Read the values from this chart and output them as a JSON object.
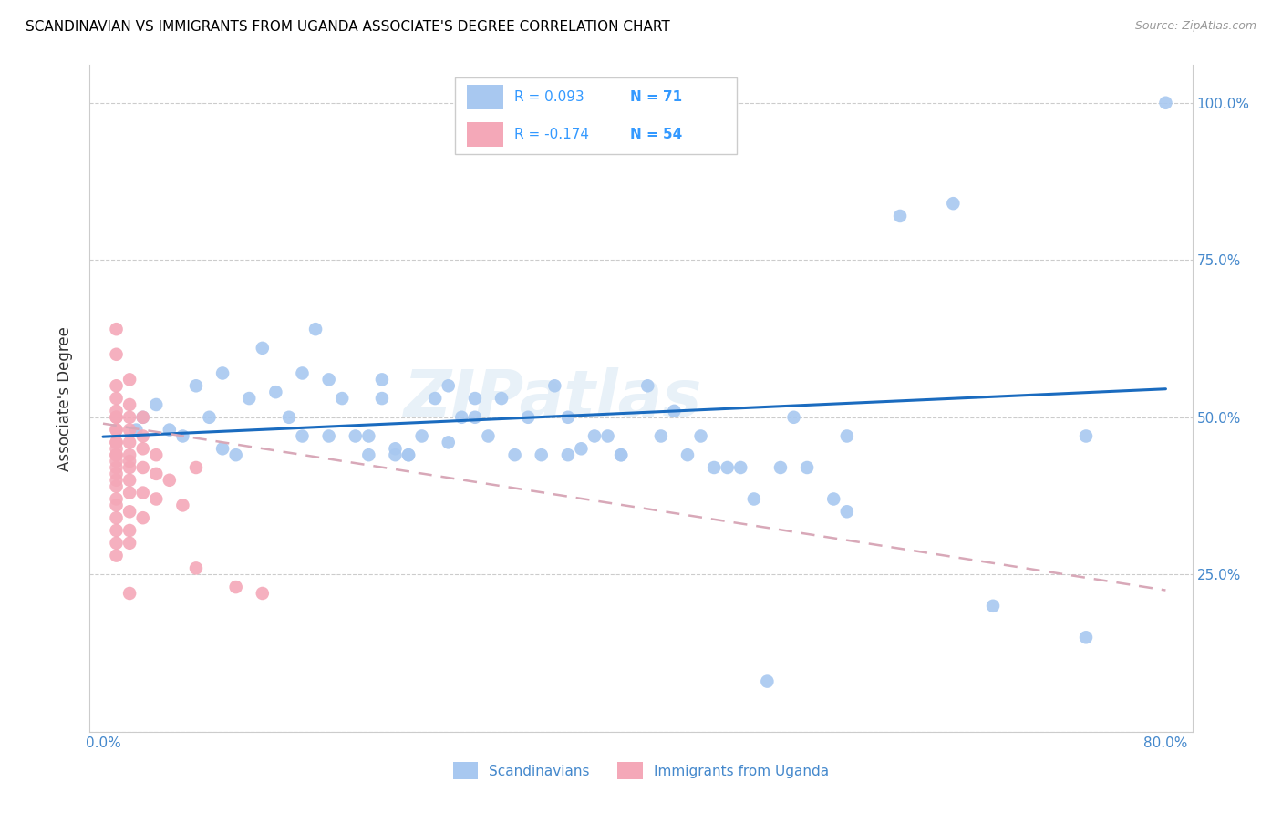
{
  "title": "SCANDINAVIAN VS IMMIGRANTS FROM UGANDA ASSOCIATE'S DEGREE CORRELATION CHART",
  "source": "Source: ZipAtlas.com",
  "ylabel": "Associate's Degree",
  "watermark": "ZIPatlas",
  "blue_color": "#a8c8f0",
  "pink_color": "#f4a8b8",
  "blue_line_color": "#1a6bbf",
  "pink_line_color": "#c87890",
  "pink_line_dash_color": "#d8a8b8",
  "title_fontsize": 11,
  "axis_tick_color": "#4488cc",
  "legend_text_color": "#3399ff",
  "blue_scatter": [
    [
      0.025,
      0.48
    ],
    [
      0.03,
      0.5
    ],
    [
      0.04,
      0.52
    ],
    [
      0.05,
      0.48
    ],
    [
      0.06,
      0.47
    ],
    [
      0.07,
      0.55
    ],
    [
      0.08,
      0.5
    ],
    [
      0.09,
      0.57
    ],
    [
      0.09,
      0.45
    ],
    [
      0.1,
      0.44
    ],
    [
      0.11,
      0.53
    ],
    [
      0.12,
      0.61
    ],
    [
      0.13,
      0.54
    ],
    [
      0.14,
      0.5
    ],
    [
      0.15,
      0.57
    ],
    [
      0.15,
      0.47
    ],
    [
      0.16,
      0.64
    ],
    [
      0.17,
      0.47
    ],
    [
      0.17,
      0.56
    ],
    [
      0.18,
      0.53
    ],
    [
      0.19,
      0.47
    ],
    [
      0.2,
      0.47
    ],
    [
      0.2,
      0.44
    ],
    [
      0.21,
      0.56
    ],
    [
      0.21,
      0.53
    ],
    [
      0.22,
      0.45
    ],
    [
      0.22,
      0.44
    ],
    [
      0.23,
      0.44
    ],
    [
      0.23,
      0.44
    ],
    [
      0.24,
      0.47
    ],
    [
      0.25,
      0.53
    ],
    [
      0.26,
      0.55
    ],
    [
      0.26,
      0.46
    ],
    [
      0.27,
      0.5
    ],
    [
      0.28,
      0.5
    ],
    [
      0.28,
      0.53
    ],
    [
      0.29,
      0.47
    ],
    [
      0.3,
      0.53
    ],
    [
      0.31,
      0.44
    ],
    [
      0.32,
      0.5
    ],
    [
      0.33,
      0.44
    ],
    [
      0.34,
      0.55
    ],
    [
      0.35,
      0.44
    ],
    [
      0.35,
      0.5
    ],
    [
      0.36,
      0.45
    ],
    [
      0.37,
      0.47
    ],
    [
      0.38,
      0.47
    ],
    [
      0.39,
      0.44
    ],
    [
      0.39,
      0.44
    ],
    [
      0.41,
      0.55
    ],
    [
      0.42,
      0.47
    ],
    [
      0.43,
      0.51
    ],
    [
      0.44,
      0.44
    ],
    [
      0.45,
      0.47
    ],
    [
      0.46,
      0.42
    ],
    [
      0.47,
      0.42
    ],
    [
      0.48,
      0.42
    ],
    [
      0.49,
      0.37
    ],
    [
      0.51,
      0.42
    ],
    [
      0.52,
      0.5
    ],
    [
      0.53,
      0.42
    ],
    [
      0.55,
      0.37
    ],
    [
      0.56,
      0.47
    ],
    [
      0.56,
      0.35
    ],
    [
      0.5,
      0.08
    ],
    [
      0.6,
      0.82
    ],
    [
      0.64,
      0.84
    ],
    [
      0.67,
      0.2
    ],
    [
      0.74,
      0.47
    ],
    [
      0.74,
      0.15
    ],
    [
      0.8,
      1.0
    ]
  ],
  "pink_scatter": [
    [
      0.01,
      0.64
    ],
    [
      0.01,
      0.6
    ],
    [
      0.01,
      0.55
    ],
    [
      0.01,
      0.53
    ],
    [
      0.01,
      0.51
    ],
    [
      0.01,
      0.5
    ],
    [
      0.01,
      0.5
    ],
    [
      0.01,
      0.48
    ],
    [
      0.01,
      0.48
    ],
    [
      0.01,
      0.46
    ],
    [
      0.01,
      0.46
    ],
    [
      0.01,
      0.45
    ],
    [
      0.01,
      0.44
    ],
    [
      0.01,
      0.44
    ],
    [
      0.01,
      0.43
    ],
    [
      0.01,
      0.42
    ],
    [
      0.01,
      0.41
    ],
    [
      0.01,
      0.4
    ],
    [
      0.01,
      0.39
    ],
    [
      0.01,
      0.37
    ],
    [
      0.01,
      0.36
    ],
    [
      0.01,
      0.34
    ],
    [
      0.01,
      0.32
    ],
    [
      0.01,
      0.3
    ],
    [
      0.01,
      0.28
    ],
    [
      0.02,
      0.56
    ],
    [
      0.02,
      0.52
    ],
    [
      0.02,
      0.5
    ],
    [
      0.02,
      0.48
    ],
    [
      0.02,
      0.46
    ],
    [
      0.02,
      0.44
    ],
    [
      0.02,
      0.43
    ],
    [
      0.02,
      0.42
    ],
    [
      0.02,
      0.4
    ],
    [
      0.02,
      0.38
    ],
    [
      0.02,
      0.35
    ],
    [
      0.02,
      0.32
    ],
    [
      0.02,
      0.3
    ],
    [
      0.02,
      0.22
    ],
    [
      0.03,
      0.5
    ],
    [
      0.03,
      0.47
    ],
    [
      0.03,
      0.45
    ],
    [
      0.03,
      0.42
    ],
    [
      0.03,
      0.38
    ],
    [
      0.03,
      0.34
    ],
    [
      0.04,
      0.44
    ],
    [
      0.04,
      0.41
    ],
    [
      0.04,
      0.37
    ],
    [
      0.05,
      0.4
    ],
    [
      0.06,
      0.36
    ],
    [
      0.07,
      0.42
    ],
    [
      0.07,
      0.26
    ],
    [
      0.1,
      0.23
    ],
    [
      0.12,
      0.22
    ]
  ],
  "xmin": -0.01,
  "xmax": 0.82,
  "ymin": 0.0,
  "ymax": 1.06,
  "ytick_vals": [
    0.0,
    0.25,
    0.5,
    0.75,
    1.0
  ],
  "ytick_labels_right": [
    "",
    "25.0%",
    "50.0%",
    "75.0%",
    "100.0%"
  ],
  "xtick_vals": [
    0.0,
    0.2,
    0.4,
    0.6,
    0.8
  ],
  "xtick_labels": [
    "0.0%",
    "",
    "",
    "",
    "80.0%"
  ],
  "blue_line_x": [
    0.0,
    0.8
  ],
  "blue_line_y": [
    0.469,
    0.545
  ],
  "pink_line_x": [
    0.0,
    0.8
  ],
  "pink_line_y": [
    0.49,
    0.225
  ]
}
